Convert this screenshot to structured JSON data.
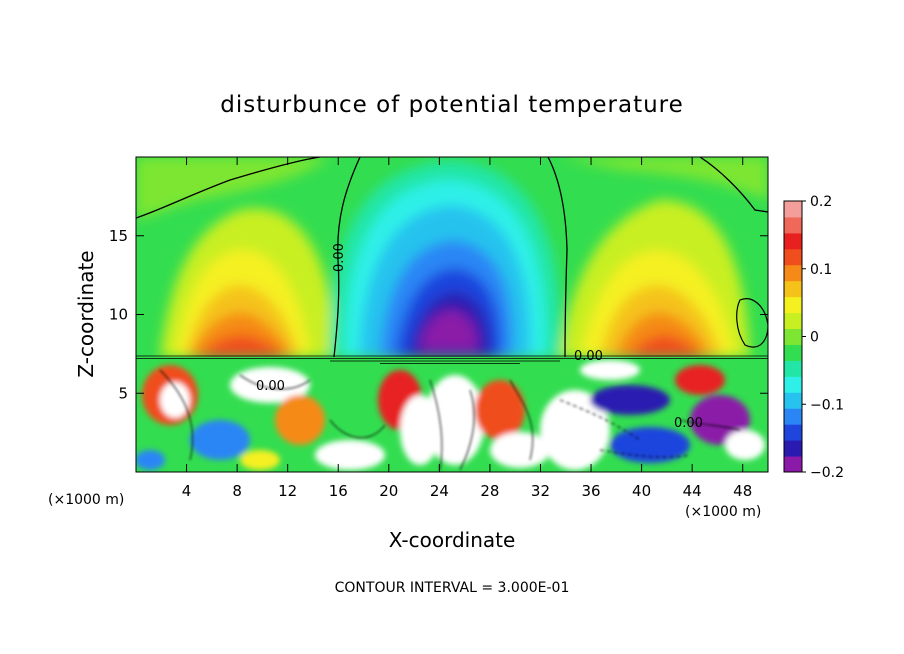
{
  "chart_data": {
    "type": "heatmap",
    "title": "disturbunce of potential temperature",
    "xlabel": "X-coordinate",
    "ylabel": "Z-coordinate",
    "x_unit_note": "(×1000 m)",
    "y_unit_note": "(×1000 m)",
    "xlim": [
      0,
      50
    ],
    "ylim": [
      0,
      20
    ],
    "x_ticks": [
      4,
      8,
      12,
      16,
      20,
      24,
      28,
      32,
      36,
      40,
      44,
      48
    ],
    "y_ticks": [
      5,
      10,
      15
    ],
    "footnote": "CONTOUR INTERVAL = 3.000E-01",
    "contour_labels": [
      "0.00",
      "0.00",
      "0.00",
      "0.00"
    ],
    "colorbar": {
      "range": [
        -0.2,
        0.2
      ],
      "tick_labels": [
        "0.2",
        "0.1",
        "0",
        "−0.1",
        "−0.2"
      ],
      "tick_values": [
        0.2,
        0.1,
        0,
        -0.1,
        -0.2
      ],
      "colors": [
        "#8b1aa8",
        "#2a1ab0",
        "#1f45dd",
        "#2a86f5",
        "#27c2ee",
        "#2ef0e8",
        "#22e6a6",
        "#33dd50",
        "#7de632",
        "#c8ef22",
        "#f5f020",
        "#f5c21a",
        "#f58a18",
        "#f04e1c",
        "#e82020",
        "#f0685a",
        "#f39e9a"
      ]
    },
    "regions": [
      {
        "x_range": [
          0,
          50
        ],
        "z_range": [
          7.3,
          20
        ],
        "description_values": [
          {
            "x": 8,
            "z": 10,
            "value": 0.12
          },
          {
            "x": 24,
            "z": 10,
            "value": -0.2
          },
          {
            "x": 44,
            "z": 10,
            "value": 0.11
          }
        ]
      }
    ]
  }
}
